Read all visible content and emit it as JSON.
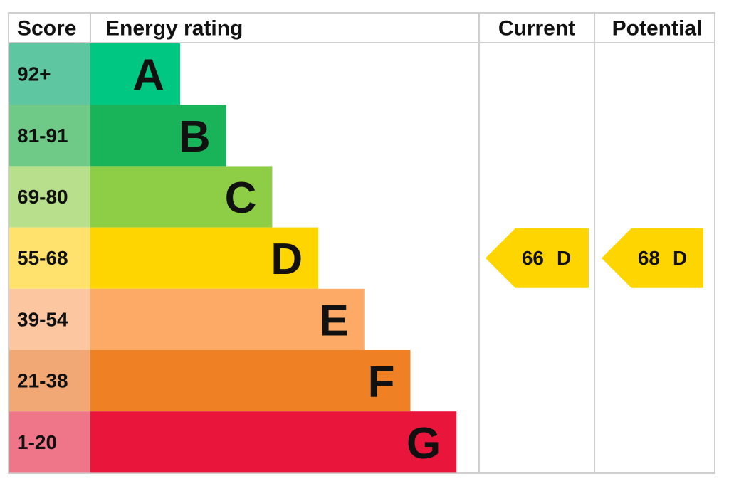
{
  "header": {
    "score": "Score",
    "rating": "Energy rating",
    "current": "Current",
    "potential": "Potential"
  },
  "rows": [
    {
      "score": "92+",
      "band": "A",
      "color": "#00c781",
      "score_color": "#5fc6a2"
    },
    {
      "score": "81-91",
      "band": "B",
      "color": "#19b459",
      "score_color": "#6fca88"
    },
    {
      "score": "69-80",
      "band": "C",
      "color": "#8dce46",
      "score_color": "#b8e08c"
    },
    {
      "score": "55-68",
      "band": "D",
      "color": "#ffd500",
      "score_color": "#ffe26e"
    },
    {
      "score": "39-54",
      "band": "E",
      "color": "#fcaa65",
      "score_color": "#fcc6a0"
    },
    {
      "score": "21-38",
      "band": "F",
      "color": "#ef8023",
      "score_color": "#f2a874"
    },
    {
      "score": "1-20",
      "band": "G",
      "color": "#e9153b",
      "score_color": "#ef7589"
    }
  ],
  "current": {
    "value": 66,
    "band": "D"
  },
  "potential": {
    "value": 68,
    "band": "D"
  }
}
